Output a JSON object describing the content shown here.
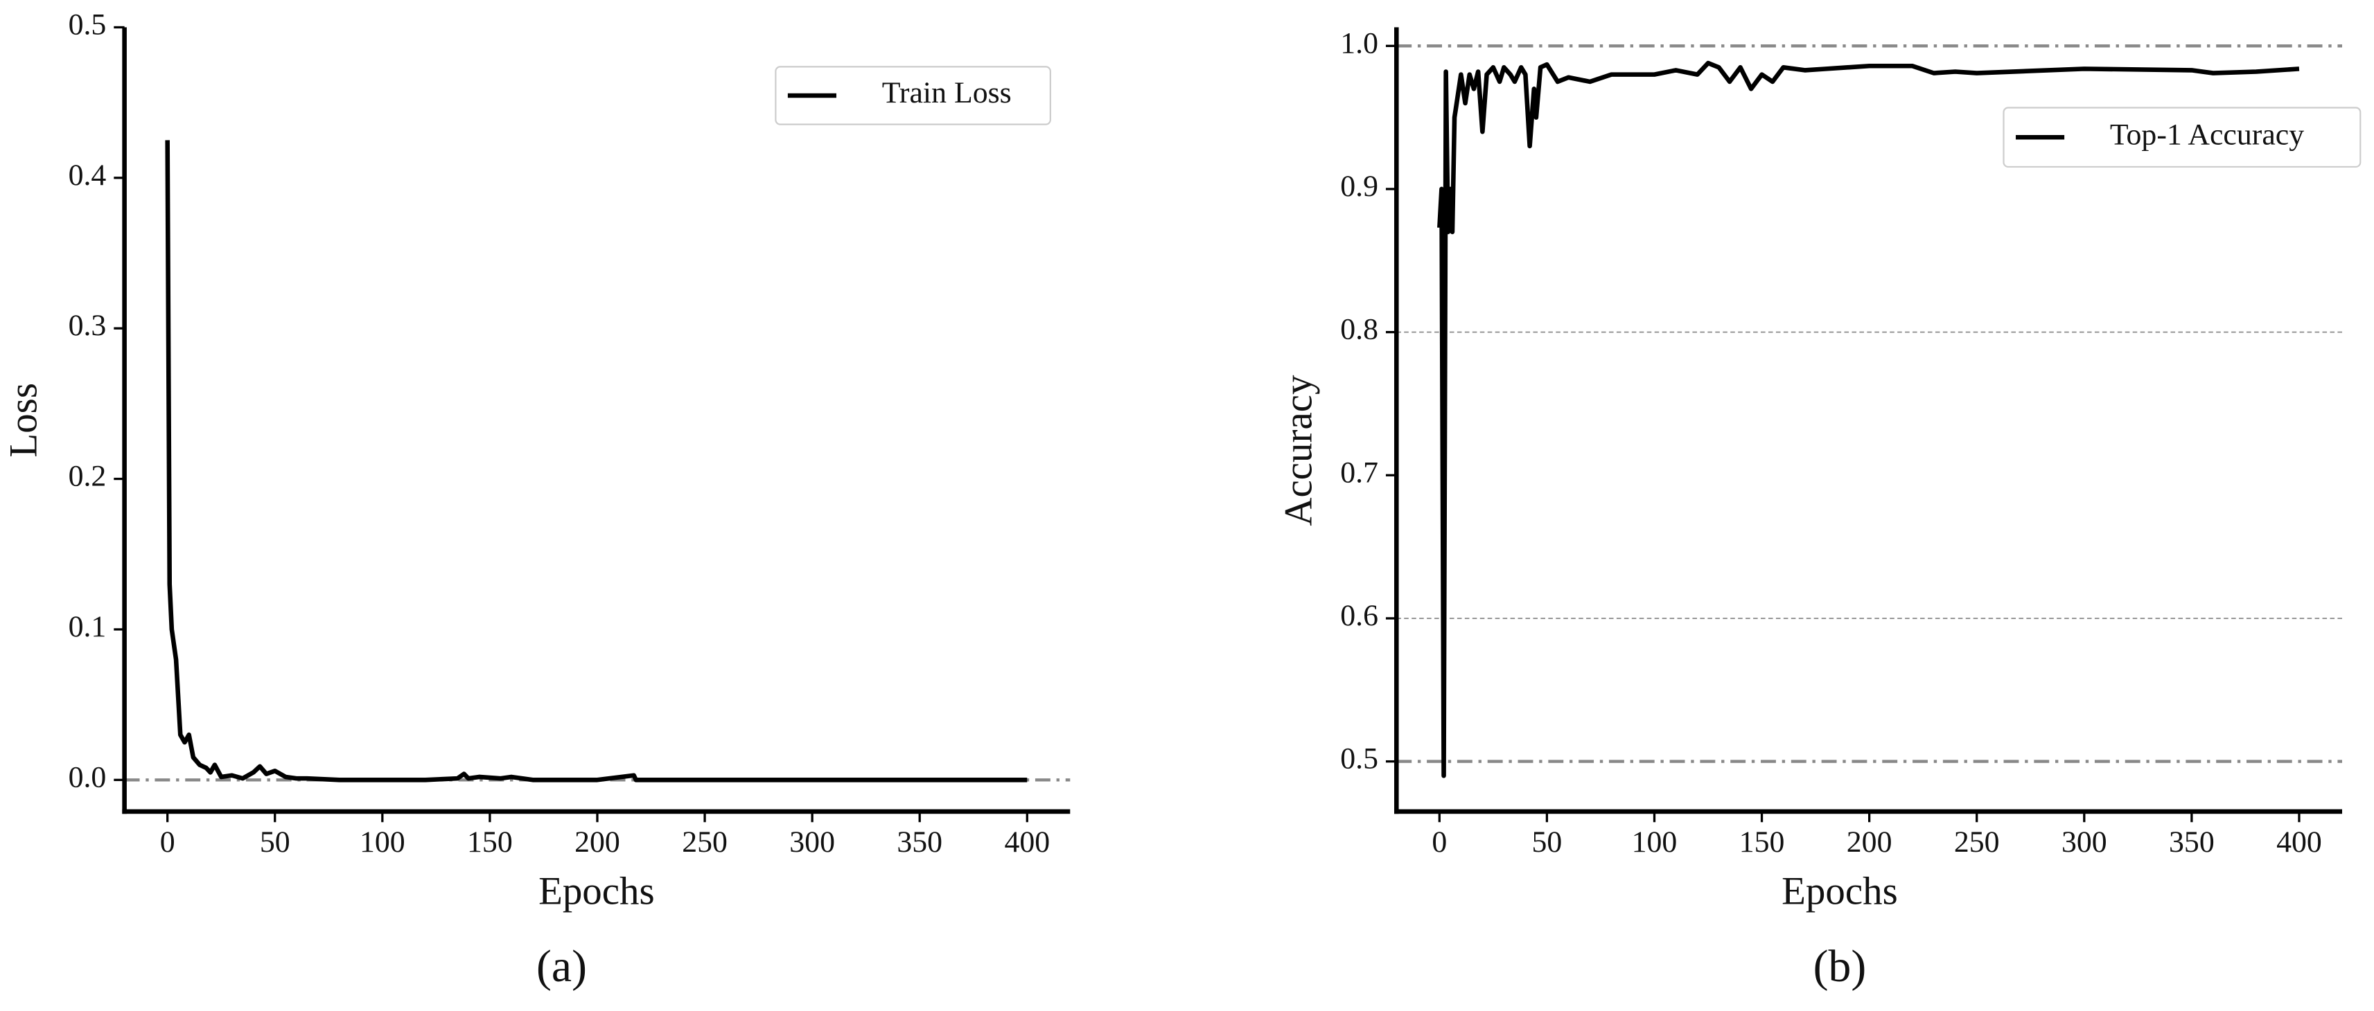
{
  "chart_data": [
    {
      "type": "line",
      "panel_label": "(a)",
      "x_label": "Epochs",
      "y_label": "Loss",
      "xlim": [
        -20,
        420
      ],
      "ylim": [
        -0.021,
        0.5
      ],
      "xticks": [
        0,
        50,
        100,
        150,
        200,
        250,
        300,
        350,
        400
      ],
      "yticks": [
        {
          "value": 0,
          "label": "0.0"
        },
        0.1,
        0.2,
        0.3,
        0.4,
        0.5
      ],
      "hlines": [
        {
          "value": 0,
          "style": "dashdot"
        }
      ],
      "legend": "upper right",
      "x": [
        0,
        1,
        2,
        4,
        6,
        8,
        10,
        12,
        15,
        18,
        20,
        22,
        25,
        30,
        35,
        40,
        43,
        46,
        50,
        55,
        60,
        65,
        80,
        100,
        120,
        135,
        138,
        140,
        145,
        155,
        160,
        165,
        170,
        200,
        217,
        218,
        220,
        250,
        300,
        350,
        400
      ],
      "series": [
        {
          "name": "Train Loss",
          "color": "#000000",
          "values": [
            0.425,
            0.13,
            0.1,
            0.08,
            0.03,
            0.025,
            0.03,
            0.015,
            0.01,
            0.008,
            0.005,
            0.01,
            0.002,
            0.003,
            0.001,
            0.005,
            0.009,
            0.004,
            0.006,
            0.002,
            0.001,
            0.001,
            0,
            0,
            0,
            0.001,
            0.004,
            0.001,
            0.002,
            0.001,
            0.002,
            0.001,
            0,
            0,
            0.003,
            0,
            0,
            0,
            0,
            0,
            0
          ]
        }
      ]
    },
    {
      "type": "line",
      "panel_label": "(b)",
      "x_label": "Epochs",
      "y_label": "Accuracy",
      "xlim": [
        -20,
        420
      ],
      "ylim": [
        0.465,
        1.013
      ],
      "xticks": [
        0,
        50,
        100,
        150,
        200,
        250,
        300,
        350,
        400
      ],
      "yticks": [
        0.5,
        0.6,
        0.7,
        0.8,
        0.9,
        {
          "value": 1,
          "label": "1.0"
        }
      ],
      "hlines": [
        {
          "value": 1,
          "style": "dashdot"
        },
        {
          "value": 0.8,
          "style": "dashed"
        },
        {
          "value": 0.6,
          "style": "dashed"
        },
        {
          "value": 0.5,
          "style": "dashdot"
        }
      ],
      "legend": "upper right",
      "x": [
        0,
        1,
        2,
        3,
        4,
        5,
        6,
        7,
        8,
        10,
        12,
        14,
        16,
        18,
        20,
        22,
        25,
        28,
        30,
        33,
        35,
        38,
        40,
        42,
        44,
        45,
        47,
        50,
        55,
        60,
        70,
        80,
        100,
        110,
        120,
        125,
        130,
        135,
        140,
        145,
        150,
        155,
        160,
        170,
        180,
        200,
        220,
        230,
        240,
        250,
        300,
        350,
        360,
        380,
        400
      ],
      "series": [
        {
          "name": "Top-1 Accuracy",
          "color": "#000000",
          "values": [
            0.873,
            0.9,
            0.49,
            0.982,
            0.87,
            0.9,
            0.87,
            0.95,
            0.96,
            0.98,
            0.96,
            0.98,
            0.97,
            0.982,
            0.94,
            0.98,
            0.985,
            0.975,
            0.985,
            0.98,
            0.975,
            0.985,
            0.98,
            0.93,
            0.97,
            0.95,
            0.985,
            0.987,
            0.975,
            0.978,
            0.975,
            0.98,
            0.98,
            0.983,
            0.98,
            0.988,
            0.985,
            0.975,
            0.985,
            0.97,
            0.98,
            0.975,
            0.985,
            0.983,
            0.984,
            0.986,
            0.986,
            0.981,
            0.982,
            0.981,
            0.984,
            0.983,
            0.981,
            0.982,
            0.984
          ]
        }
      ]
    }
  ]
}
